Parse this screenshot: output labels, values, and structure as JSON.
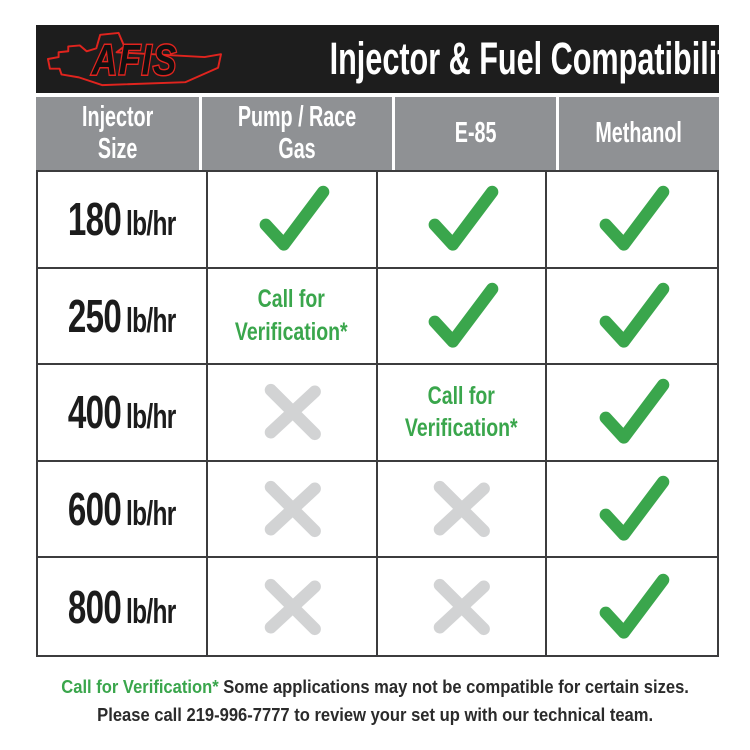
{
  "header": {
    "logo": "AFIS",
    "title": "Injector & Fuel Compatibility"
  },
  "table": {
    "columns": [
      "Injector Size",
      "Pump / Race Gas",
      "E-85",
      "Methanol"
    ],
    "rows": [
      {
        "size": "180",
        "unit": "lb/hr",
        "cells": [
          "check",
          "check",
          "check"
        ]
      },
      {
        "size": "250",
        "unit": "lb/hr",
        "cells": [
          "call",
          "check",
          "check"
        ]
      },
      {
        "size": "400",
        "unit": "lb/hr",
        "cells": [
          "cross",
          "call",
          "check"
        ]
      },
      {
        "size": "600",
        "unit": "lb/hr",
        "cells": [
          "cross",
          "cross",
          "check"
        ]
      },
      {
        "size": "800",
        "unit": "lb/hr",
        "cells": [
          "cross",
          "cross",
          "check"
        ]
      }
    ]
  },
  "labels": {
    "call_for_verification": "Call for\nVerification*"
  },
  "footer": {
    "highlight": "Call for Verification*",
    "line1_rest": " Some applications may not be compatible for certain sizes.",
    "line2": "Please call 219-996-7777 to review your set up with our technical team."
  },
  "colors": {
    "green": "#3aa64c",
    "cross_gray": "#d2d3d4",
    "header_gray": "#8f9194",
    "bar_black": "#1d1d1d",
    "logo_red": "#e0241e",
    "grid_border": "#3c3c3e"
  },
  "chart_data": {
    "type": "table",
    "title": "Injector & Fuel Compatibility",
    "columns": [
      "Injector Size",
      "Pump / Race Gas",
      "E-85",
      "Methanol"
    ],
    "rows": [
      [
        "180 lb/hr",
        "check",
        "check",
        "check"
      ],
      [
        "250 lb/hr",
        "Call for Verification*",
        "check",
        "check"
      ],
      [
        "400 lb/hr",
        "cross",
        "Call for Verification*",
        "check"
      ],
      [
        "600 lb/hr",
        "cross",
        "cross",
        "check"
      ],
      [
        "800 lb/hr",
        "cross",
        "cross",
        "check"
      ]
    ],
    "footnotes": [
      "Call for Verification* Some applications may not be compatible for certain sizes.",
      "Please call 219-996-7777 to review your set up with our technical team."
    ]
  }
}
